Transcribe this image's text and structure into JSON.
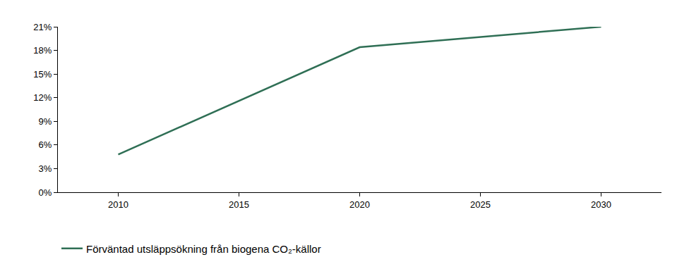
{
  "chart_data": {
    "type": "line",
    "x": [
      2010,
      2020,
      2030
    ],
    "series": [
      {
        "name": "Förväntad utsläppsökning från biogena CO₂-källor",
        "color": "#2f6f55",
        "values": [
          4.8,
          18.4,
          21.0
        ]
      }
    ],
    "xlim": [
      2007.5,
      2032.5
    ],
    "xticks": [
      2010,
      2015,
      2020,
      2025,
      2030
    ],
    "ylim": [
      0,
      21
    ],
    "yticks": [
      {
        "value": 0,
        "label": "0%"
      },
      {
        "value": 3,
        "label": "3%"
      },
      {
        "value": 6,
        "label": "6%"
      },
      {
        "value": 9,
        "label": "9%"
      },
      {
        "value": 12,
        "label": "12%"
      },
      {
        "value": 15,
        "label": "15%"
      },
      {
        "value": 18,
        "label": "18%"
      },
      {
        "value": 21,
        "label": "21%"
      }
    ],
    "grid": false,
    "legend": "bottom-left"
  }
}
